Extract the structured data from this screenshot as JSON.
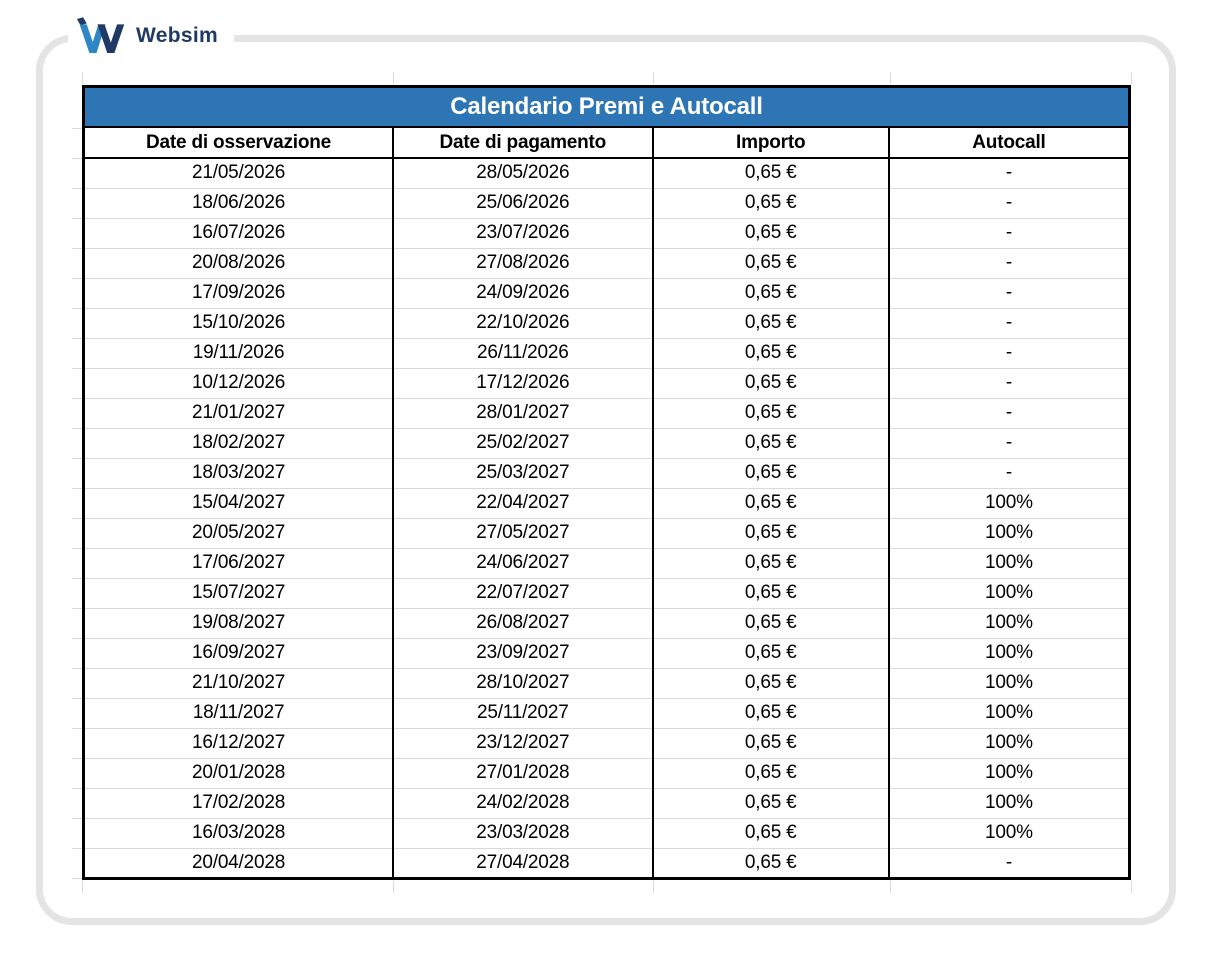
{
  "brand": {
    "name": "Websim",
    "icon": "websim-w-logo"
  },
  "table": {
    "title": "Calendario Premi e Autocall",
    "columns": [
      "Date di osservazione",
      "Date di pagamento",
      "Importo",
      "Autocall"
    ],
    "rows": [
      [
        "21/05/2026",
        "28/05/2026",
        "0,65 €",
        "-"
      ],
      [
        "18/06/2026",
        "25/06/2026",
        "0,65 €",
        "-"
      ],
      [
        "16/07/2026",
        "23/07/2026",
        "0,65 €",
        "-"
      ],
      [
        "20/08/2026",
        "27/08/2026",
        "0,65 €",
        "-"
      ],
      [
        "17/09/2026",
        "24/09/2026",
        "0,65 €",
        "-"
      ],
      [
        "15/10/2026",
        "22/10/2026",
        "0,65 €",
        "-"
      ],
      [
        "19/11/2026",
        "26/11/2026",
        "0,65 €",
        "-"
      ],
      [
        "10/12/2026",
        "17/12/2026",
        "0,65 €",
        "-"
      ],
      [
        "21/01/2027",
        "28/01/2027",
        "0,65 €",
        "-"
      ],
      [
        "18/02/2027",
        "25/02/2027",
        "0,65 €",
        "-"
      ],
      [
        "18/03/2027",
        "25/03/2027",
        "0,65 €",
        "-"
      ],
      [
        "15/04/2027",
        "22/04/2027",
        "0,65 €",
        "100%"
      ],
      [
        "20/05/2027",
        "27/05/2027",
        "0,65 €",
        "100%"
      ],
      [
        "17/06/2027",
        "24/06/2027",
        "0,65 €",
        "100%"
      ],
      [
        "15/07/2027",
        "22/07/2027",
        "0,65 €",
        "100%"
      ],
      [
        "19/08/2027",
        "26/08/2027",
        "0,65 €",
        "100%"
      ],
      [
        "16/09/2027",
        "23/09/2027",
        "0,65 €",
        "100%"
      ],
      [
        "21/10/2027",
        "28/10/2027",
        "0,65 €",
        "100%"
      ],
      [
        "18/11/2027",
        "25/11/2027",
        "0,65 €",
        "100%"
      ],
      [
        "16/12/2027",
        "23/12/2027",
        "0,65 €",
        "100%"
      ],
      [
        "20/01/2028",
        "27/01/2028",
        "0,65 €",
        "100%"
      ],
      [
        "17/02/2028",
        "24/02/2028",
        "0,65 €",
        "100%"
      ],
      [
        "16/03/2028",
        "23/03/2028",
        "0,65 €",
        "100%"
      ],
      [
        "20/04/2028",
        "27/04/2028",
        "0,65 €",
        "-"
      ]
    ]
  },
  "colors": {
    "title_bar_blue": "#2e75b6",
    "brand_navy": "#1f3a64",
    "brand_light_blue": "#2f86c6",
    "gridline_gray": "#d9d9d9",
    "card_border_gray": "#e4e4e4"
  }
}
